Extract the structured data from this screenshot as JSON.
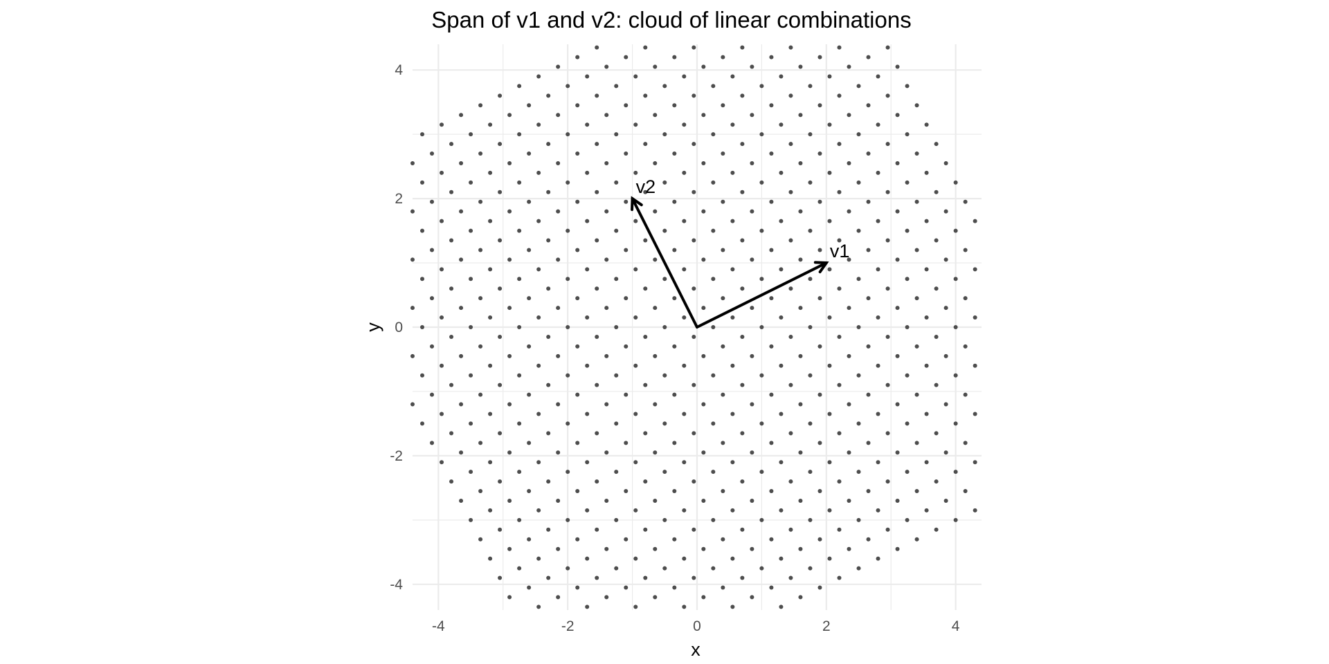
{
  "chart_data": {
    "type": "scatter",
    "title": "Span of v1 and v2: cloud of linear combinations",
    "xlabel": "x",
    "ylabel": "y",
    "xlim": [
      -4.4,
      4.4
    ],
    "ylim": [
      -4.4,
      4.4
    ],
    "xticks": [
      -4,
      -2,
      0,
      2,
      4
    ],
    "yticks": [
      -4,
      -2,
      0,
      2,
      4
    ],
    "grid": true,
    "point_color": "#4d4d4d",
    "vector_color": "#000000",
    "grid_color": "#ebebeb",
    "vectors": [
      {
        "name": "v1",
        "x": 2,
        "y": 1
      },
      {
        "name": "v2",
        "x": -1,
        "y": 2
      }
    ],
    "coefficient_min": -2,
    "coefficient_max": 2,
    "coefficient_step": 0.15
  }
}
